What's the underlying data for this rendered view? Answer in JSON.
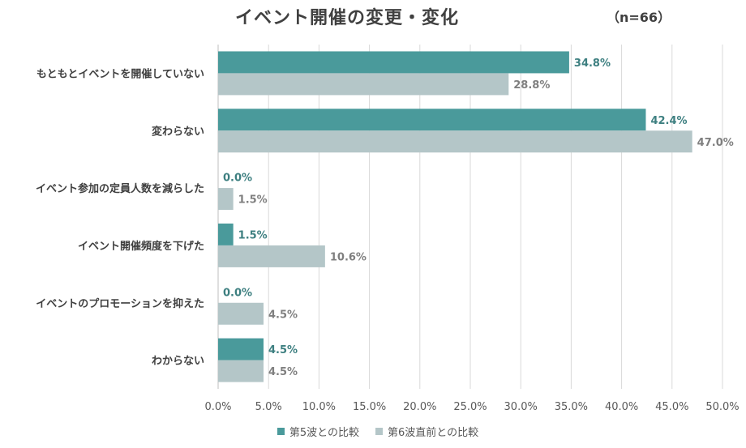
{
  "title": "イベント開催の変更・変化",
  "sample_size": "（n=66）",
  "colors": {
    "series1": "#4a9a9b",
    "series2": "#b4c6c8",
    "series1_label": "#3d7f80",
    "series2_label": "#7f7f7f",
    "grid": "#d9d9d9",
    "axis": "#bfbfbf"
  },
  "chart_data": {
    "type": "bar",
    "orientation": "horizontal",
    "title": "イベント開催の変更・変化",
    "categories": [
      "もともとイベントを開催していない",
      "変わらない",
      "イベント参加の定員人数を減らした",
      "イベント開催頻度を下げた",
      "イベントのプロモーションを抑えた",
      "わからない"
    ],
    "series": [
      {
        "name": "第5波との比較",
        "values": [
          34.8,
          42.4,
          0.0,
          1.5,
          0.0,
          4.5
        ],
        "labels": [
          "34.8%",
          "42.4%",
          "0.0%",
          "1.5%",
          "0.0%",
          "4.5%"
        ]
      },
      {
        "name": "第6波直前との比較",
        "values": [
          28.8,
          47.0,
          1.5,
          10.6,
          4.5,
          4.5
        ],
        "labels": [
          "28.8%",
          "47.0%",
          "1.5%",
          "10.6%",
          "4.5%",
          "4.5%"
        ]
      }
    ],
    "xlim": [
      0,
      50
    ],
    "xticks": [
      "0.0%",
      "5.0%",
      "10.0%",
      "15.0%",
      "20.0%",
      "25.0%",
      "30.0%",
      "35.0%",
      "40.0%",
      "45.0%",
      "50.0%"
    ],
    "xtick_values": [
      0,
      5,
      10,
      15,
      20,
      25,
      30,
      35,
      40,
      45,
      50
    ],
    "legend_position": "bottom",
    "grid": true
  }
}
